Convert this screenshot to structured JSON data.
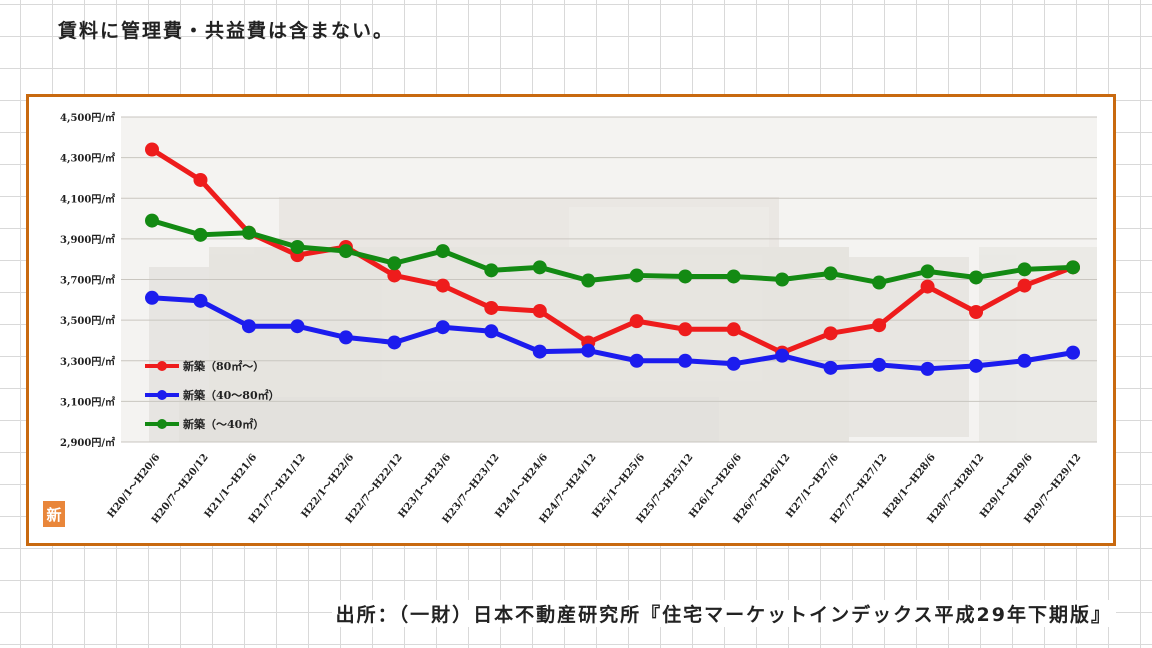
{
  "header": {
    "note": "賃料に管理費・共益費は含まない。"
  },
  "footer": {
    "source": "出所：（一財）日本不動産研究所『住宅マーケットインデックス平成29年下期版』"
  },
  "badge": {
    "text": "新",
    "color": "#e9863a"
  },
  "chart_data": {
    "type": "line",
    "ylim": [
      2900,
      4500
    ],
    "y_ticks": [
      2900,
      3100,
      3300,
      3500,
      3700,
      3900,
      4100,
      4300,
      4500
    ],
    "y_tick_labels": [
      "2,900円/㎡",
      "3,100円/㎡",
      "3,300円/㎡",
      "3,500円/㎡",
      "3,700円/㎡",
      "3,900円/㎡",
      "4,100円/㎡",
      "4,300円/㎡",
      "4,500円/㎡"
    ],
    "categories": [
      "H20/1～H20/6",
      "H20/7～H20/12",
      "H21/1～H21/6",
      "H21/7～H21/12",
      "H22/1～H22/6",
      "H22/7～H22/12",
      "H23/1～H23/6",
      "H23/7～H23/12",
      "H24/1～H24/6",
      "H24/7～H24/12",
      "H25/1～H25/6",
      "H25/7～H25/12",
      "H26/1～H26/6",
      "H26/7～H26/12",
      "H27/1～H27/6",
      "H27/7～H27/12",
      "H28/1～H28/6",
      "H28/7～H28/12",
      "H29/1～H29/6",
      "H29/7～H29/12"
    ],
    "series": [
      {
        "name": "新築（80㎡～）",
        "color": "#ee1c1c",
        "values": [
          4340,
          4190,
          3930,
          3820,
          3860,
          3720,
          3670,
          3560,
          3545,
          3390,
          3495,
          3455,
          3455,
          3340,
          3435,
          3475,
          3665,
          3540,
          3670,
          3760
        ]
      },
      {
        "name": "新築（40～80㎡）",
        "color": "#1c1cee",
        "values": [
          3610,
          3595,
          3470,
          3470,
          3415,
          3390,
          3465,
          3445,
          3345,
          3350,
          3300,
          3300,
          3285,
          3325,
          3265,
          3280,
          3260,
          3275,
          3300,
          3340
        ]
      },
      {
        "name": "新築（～40㎡）",
        "color": "#138a13",
        "values": [
          3990,
          3920,
          3930,
          3860,
          3840,
          3780,
          3840,
          3745,
          3760,
          3695,
          3720,
          3715,
          3715,
          3700,
          3730,
          3685,
          3740,
          3710,
          3750,
          3760
        ]
      }
    ],
    "legend_position": "bottom-left",
    "grid": true
  }
}
